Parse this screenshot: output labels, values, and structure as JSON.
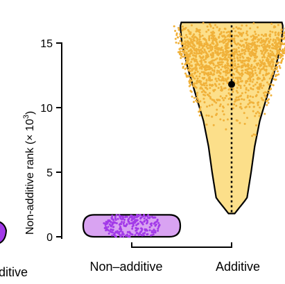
{
  "chart_data": {
    "type": "violin",
    "ylabel": "Non-additive rank (× 10",
    "ylabel_superscript": "3",
    "ylabel_close": ")",
    "yticks": [
      0,
      5,
      10,
      15
    ],
    "ylim": [
      0,
      17
    ],
    "categories": [
      "Non–additive",
      "Additive"
    ],
    "left_cropped_label": "ditive",
    "series": [
      {
        "category": "Non–additive",
        "fill": "#d9a3f2",
        "point_color": "#a23ae8",
        "range": [
          0.0,
          1.7
        ],
        "median": 0.9,
        "n_points": 260,
        "width_profile": [
          [
            0.0,
            0.55
          ],
          [
            0.3,
            0.85
          ],
          [
            0.9,
            0.95
          ],
          [
            1.5,
            0.85
          ],
          [
            1.7,
            0.55
          ]
        ]
      },
      {
        "category": "Additive",
        "fill": "#fcdf8a",
        "point_color": "#f0b13a",
        "range": [
          1.8,
          16.6
        ],
        "median": 11.8,
        "n_points": 1500,
        "width_profile": [
          [
            1.8,
            0.06
          ],
          [
            3.0,
            0.3
          ],
          [
            5.0,
            0.38
          ],
          [
            7.0,
            0.45
          ],
          [
            9.0,
            0.55
          ],
          [
            11.0,
            0.7
          ],
          [
            13.0,
            0.85
          ],
          [
            15.0,
            0.97
          ],
          [
            16.3,
            1.0
          ],
          [
            16.6,
            0.98
          ]
        ]
      }
    ],
    "left_partial": {
      "fill": "#a23ae8"
    },
    "colors": {
      "axis": "#000000",
      "median": "#000000"
    }
  }
}
